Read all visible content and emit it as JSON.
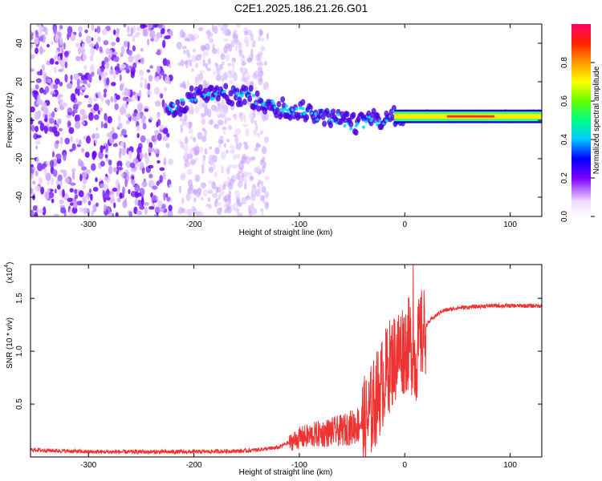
{
  "title": "C2E1.2025.186.21.26.G01",
  "chart_data": [
    {
      "type": "heatmap",
      "xlabel": "Height of straight line (km)",
      "ylabel": "Frequency (Hz)",
      "xlim": [
        -355,
        130
      ],
      "ylim": [
        -50,
        50
      ],
      "x_ticks": [
        -300,
        -200,
        -100,
        0,
        100
      ],
      "y_ticks": [
        -40,
        -20,
        0,
        20,
        40
      ],
      "x_tick_labels": [
        "-300",
        "-200",
        "-100",
        "0",
        "100"
      ],
      "y_tick_labels": [
        "-40",
        "-20",
        "0",
        "20",
        "40"
      ],
      "colorbar": {
        "label": "Normalized spectral amplitude",
        "range": [
          0,
          1
        ],
        "ticks": [
          0.0,
          0.2,
          0.4,
          0.6,
          0.8
        ],
        "tick_labels": [
          "0.0",
          "0.2",
          "0.4",
          "0.6",
          "0.8"
        ]
      },
      "ridge_center": [
        {
          "x": -220,
          "y": 5
        },
        {
          "x": -200,
          "y": 13
        },
        {
          "x": -170,
          "y": 13
        },
        {
          "x": -150,
          "y": 13
        },
        {
          "x": -130,
          "y": 8
        },
        {
          "x": -110,
          "y": 6
        },
        {
          "x": -90,
          "y": 4
        },
        {
          "x": -70,
          "y": 2
        },
        {
          "x": -50,
          "y": -2
        },
        {
          "x": -30,
          "y": 0
        },
        {
          "x": -10,
          "y": 2
        },
        {
          "x": 0,
          "y": 2
        },
        {
          "x": 50,
          "y": 2
        },
        {
          "x": 130,
          "y": 2
        }
      ]
    },
    {
      "type": "line",
      "xlabel": "Height of straight line (km)",
      "ylabel": "SNR (10 * v/v)",
      "y_multiplier_label": "(x10",
      "y_multiplier_exponent": "4",
      "y_multiplier_close": ")",
      "xlim": [
        -355,
        130
      ],
      "ylim": [
        0,
        1.82
      ],
      "x_ticks": [
        -300,
        -200,
        -100,
        0,
        100
      ],
      "y_ticks": [
        0.5,
        1.0,
        1.5
      ],
      "x_tick_labels": [
        "-300",
        "-200",
        "-100",
        "0",
        "100"
      ],
      "y_tick_labels": [
        "0.5",
        "1.0",
        "1.5"
      ],
      "color": "#ee3333",
      "envelope": [
        {
          "x": -355,
          "y": 0.06
        },
        {
          "x": -300,
          "y": 0.04
        },
        {
          "x": -250,
          "y": 0.04
        },
        {
          "x": -200,
          "y": 0.04
        },
        {
          "x": -150,
          "y": 0.05
        },
        {
          "x": -120,
          "y": 0.08
        },
        {
          "x": -100,
          "y": 0.18
        },
        {
          "x": -80,
          "y": 0.22
        },
        {
          "x": -60,
          "y": 0.25
        },
        {
          "x": -45,
          "y": 0.3
        },
        {
          "x": -35,
          "y": 0.4
        },
        {
          "x": -25,
          "y": 0.65
        },
        {
          "x": -15,
          "y": 0.9
        },
        {
          "x": -5,
          "y": 1.05
        },
        {
          "x": 5,
          "y": 1.12
        },
        {
          "x": 10,
          "y": 0.95
        },
        {
          "x": 15,
          "y": 1.18
        },
        {
          "x": 25,
          "y": 1.3
        },
        {
          "x": 35,
          "y": 1.38
        },
        {
          "x": 50,
          "y": 1.41
        },
        {
          "x": 80,
          "y": 1.43
        },
        {
          "x": 100,
          "y": 1.43
        },
        {
          "x": 130,
          "y": 1.43
        }
      ],
      "peak": {
        "x": 8,
        "y": 1.82
      }
    }
  ]
}
